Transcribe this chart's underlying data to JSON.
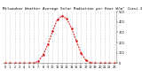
{
  "title": "Milwaukee Weather Average Solar Radiation per Hour W/m² (Last 24 Hours)",
  "hours": [
    0,
    1,
    2,
    3,
    4,
    5,
    6,
    7,
    8,
    9,
    10,
    11,
    12,
    13,
    14,
    15,
    16,
    17,
    18,
    19,
    20,
    21,
    22,
    23
  ],
  "values": [
    0,
    0,
    0,
    0,
    0,
    0,
    2,
    18,
    80,
    180,
    310,
    420,
    460,
    430,
    340,
    220,
    100,
    30,
    5,
    0,
    0,
    0,
    0,
    0
  ],
  "line_color": "#dd0000",
  "grid_color": "#aaaaaa",
  "bg_color": "#ffffff",
  "ylim": [
    0,
    500
  ],
  "xlim": [
    -0.5,
    23.5
  ],
  "yticks": [
    0,
    100,
    200,
    300,
    400,
    500
  ],
  "title_fontsize": 3.0,
  "tick_fontsize": 2.5
}
